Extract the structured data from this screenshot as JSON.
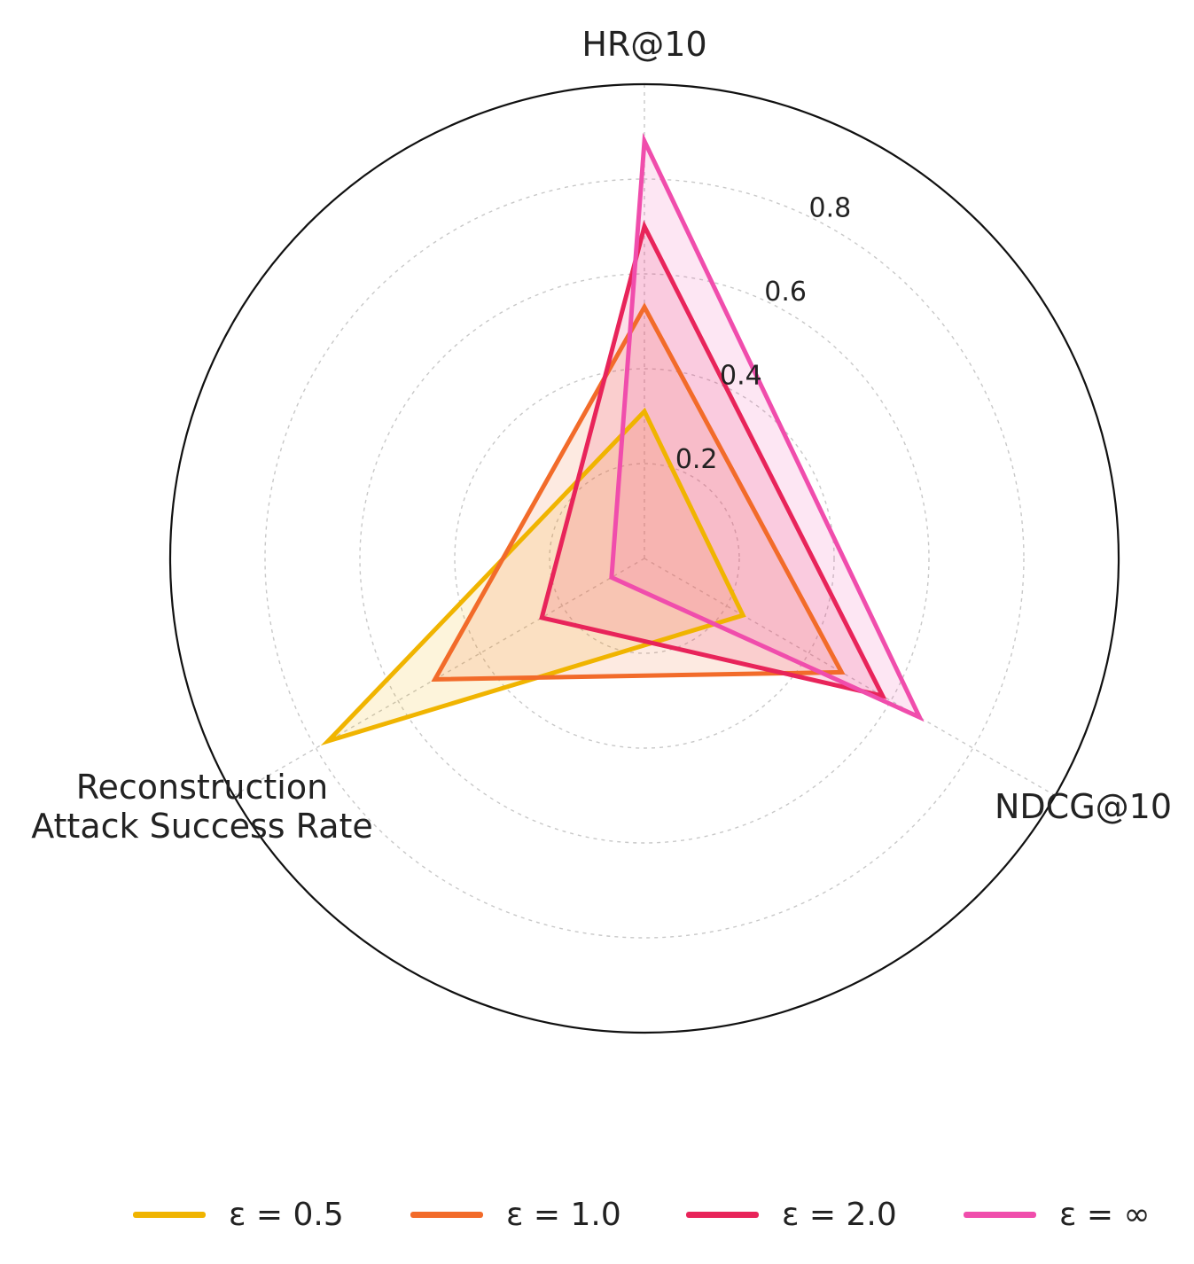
{
  "chart_data": {
    "type": "radar",
    "axes": [
      "HR@10",
      "NDCG@10",
      "Reconstruction\nAttack Success Rate"
    ],
    "radial_ticks": [
      "0.2",
      "0.4",
      "0.6",
      "0.8"
    ],
    "rmax": 1.0,
    "grid": true,
    "legend_position": "bottom",
    "series": [
      {
        "name": "ε = 0.5",
        "color": "#f0b400",
        "values": [
          0.31,
          0.24,
          0.77
        ]
      },
      {
        "name": "ε = 1.0",
        "color": "#f26b2a",
        "values": [
          0.53,
          0.48,
          0.51
        ]
      },
      {
        "name": "ε = 2.0",
        "color": "#e8245a",
        "values": [
          0.7,
          0.58,
          0.25
        ]
      },
      {
        "name": "ε = ∞",
        "color": "#f04dac",
        "values": [
          0.88,
          0.67,
          0.08
        ]
      }
    ]
  }
}
